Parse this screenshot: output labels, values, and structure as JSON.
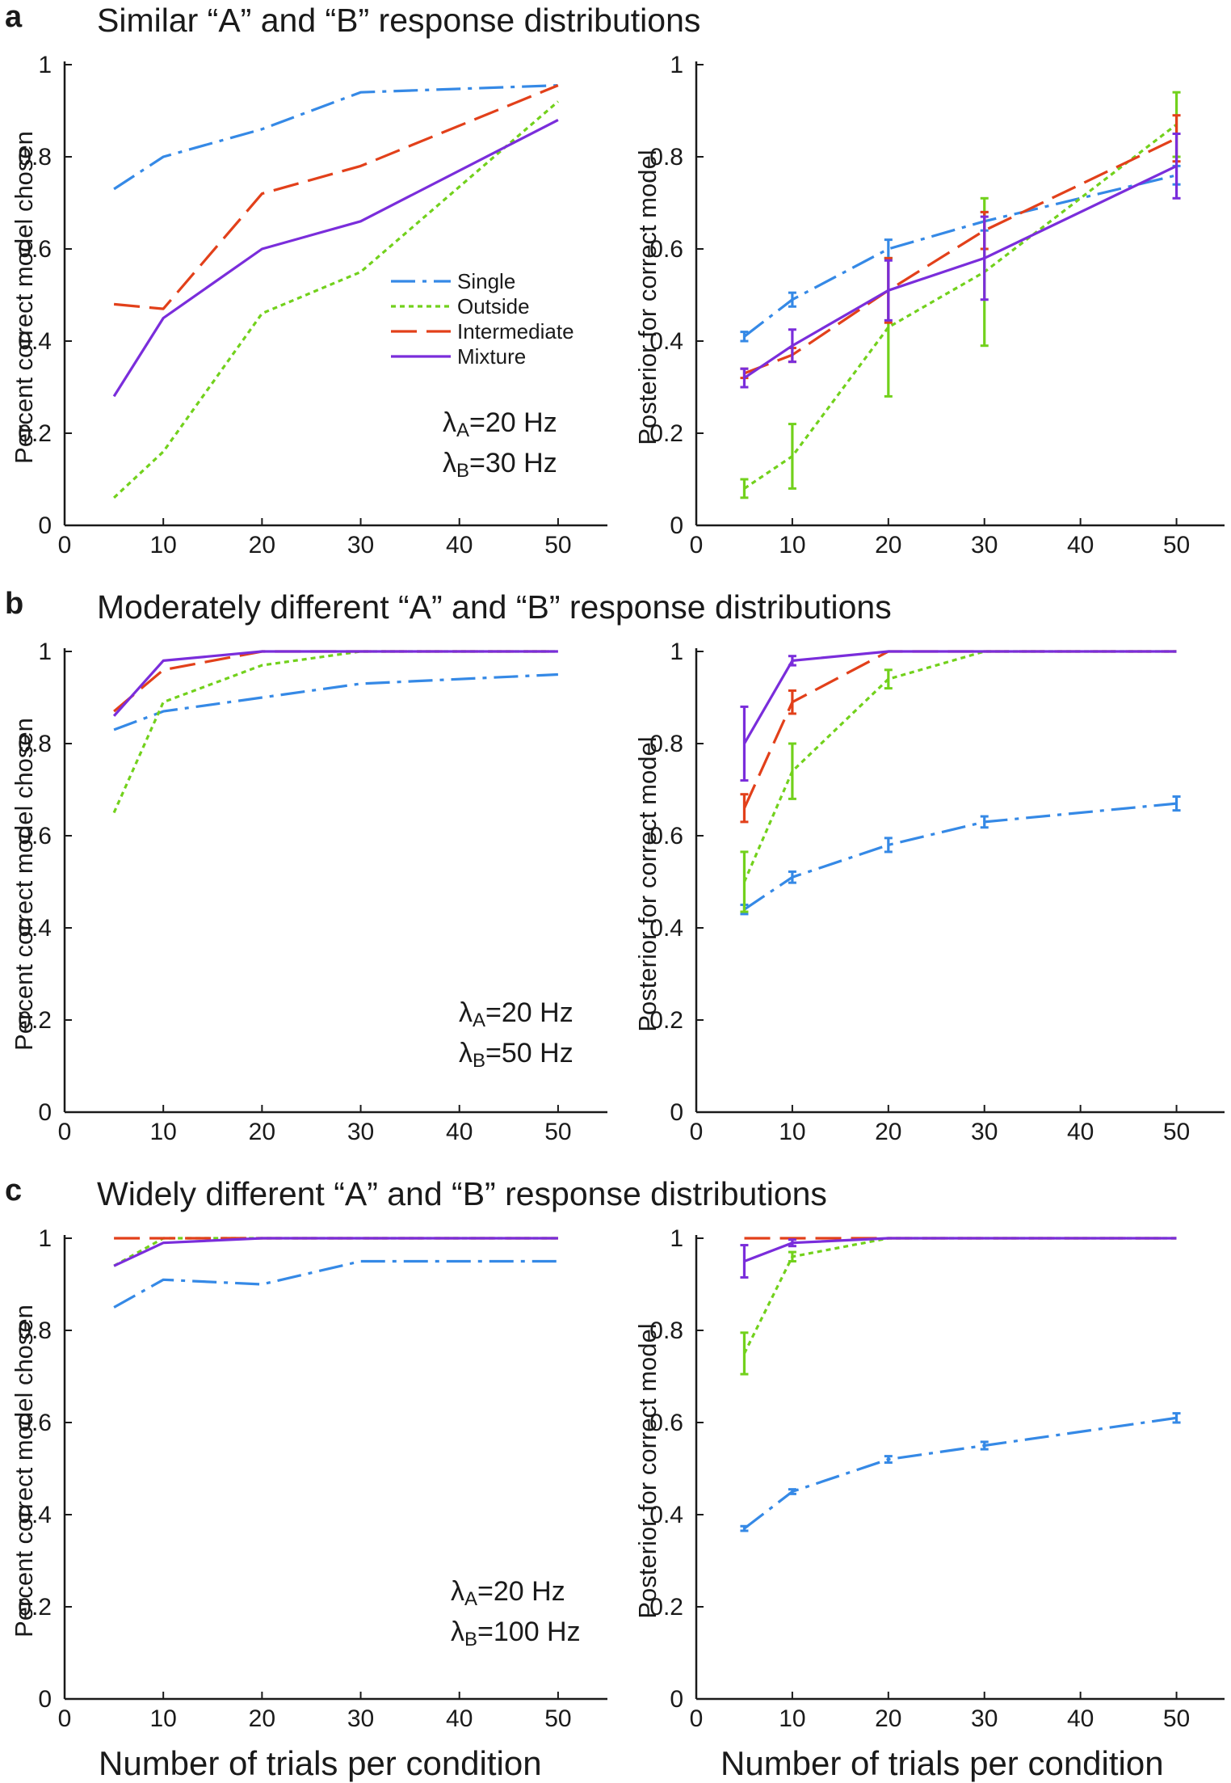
{
  "colors": {
    "Single": "#3589e6",
    "Outside": "#72d11c",
    "Intermediate": "#e2401a",
    "Mixture": "#7a2ddb"
  },
  "legend": [
    "Single",
    "Outside",
    "Intermediate",
    "Mixture"
  ],
  "chart_data": [
    {
      "id": "a-left",
      "panel": "a",
      "type": "line",
      "panel_letter": "a",
      "title": "Similar “A” and “B” response distributions",
      "ylabel": "Percent correct model chosen",
      "xlabel": "",
      "xlim": [
        0,
        55
      ],
      "ylim": [
        0,
        1
      ],
      "xticks": [
        0,
        10,
        20,
        30,
        40,
        50
      ],
      "yticks": [
        0,
        0.2,
        0.4,
        0.6,
        0.8,
        1
      ],
      "ytick_labels": [
        "0",
        "0.2",
        "0.4",
        "0.6",
        "0.8",
        "1"
      ],
      "x": [
        5,
        10,
        20,
        30,
        50
      ],
      "series": [
        {
          "name": "Single",
          "values": [
            0.73,
            0.8,
            0.86,
            0.94,
            0.955
          ]
        },
        {
          "name": "Outside",
          "values": [
            0.06,
            0.16,
            0.46,
            0.55,
            0.92
          ]
        },
        {
          "name": "Intermediate",
          "values": [
            0.48,
            0.47,
            0.72,
            0.78,
            0.955
          ]
        },
        {
          "name": "Mixture",
          "values": [
            0.28,
            0.45,
            0.6,
            0.66,
            0.88
          ]
        }
      ],
      "show_legend": true,
      "note": {
        "lambda_a": "=20 Hz",
        "lambda_b": "=30 Hz"
      }
    },
    {
      "id": "a-right",
      "panel": "a",
      "type": "line",
      "ylabel": "Posterior for correct model",
      "xlabel": "",
      "xlim": [
        0,
        55
      ],
      "ylim": [
        0,
        1
      ],
      "xticks": [
        0,
        10,
        20,
        30,
        40,
        50
      ],
      "yticks": [
        0,
        0.2,
        0.4,
        0.6,
        0.8,
        1
      ],
      "ytick_labels": [
        "0",
        "0.2",
        "0.4",
        "0.6",
        "0.8",
        "1"
      ],
      "x": [
        5,
        10,
        20,
        30,
        50
      ],
      "series": [
        {
          "name": "Single",
          "values": [
            0.41,
            0.49,
            0.6,
            0.66,
            0.76
          ],
          "errors": [
            0.01,
            0.015,
            0.02,
            0.02,
            0.02
          ]
        },
        {
          "name": "Outside",
          "values": [
            0.08,
            0.15,
            0.43,
            0.55,
            0.87
          ],
          "errors": [
            0.02,
            0.07,
            0.15,
            0.16,
            0.07
          ]
        },
        {
          "name": "Intermediate",
          "values": [
            0.33,
            0.37,
            0.51,
            0.64,
            0.84
          ],
          "errors": [
            0.01,
            0.015,
            0.07,
            0.04,
            0.05
          ]
        },
        {
          "name": "Mixture",
          "values": [
            0.32,
            0.39,
            0.51,
            0.58,
            0.78
          ],
          "errors": [
            0.02,
            0.035,
            0.065,
            0.09,
            0.07
          ]
        }
      ]
    },
    {
      "id": "b-left",
      "panel": "b",
      "type": "line",
      "panel_letter": "b",
      "title": "Moderately different “A” and “B” response distributions",
      "ylabel": "Percent correct model chosen",
      "xlabel": "",
      "xlim": [
        0,
        55
      ],
      "ylim": [
        0,
        1
      ],
      "xticks": [
        0,
        10,
        20,
        30,
        40,
        50
      ],
      "yticks": [
        0,
        0.2,
        0.4,
        0.6,
        0.8,
        1
      ],
      "ytick_labels": [
        "0",
        "0.2",
        "0.4",
        "0.6",
        "0.8",
        "1"
      ],
      "x": [
        5,
        10,
        20,
        30,
        50
      ],
      "series": [
        {
          "name": "Single",
          "values": [
            0.83,
            0.87,
            0.9,
            0.93,
            0.95
          ]
        },
        {
          "name": "Outside",
          "values": [
            0.65,
            0.89,
            0.97,
            1.0,
            1.0
          ]
        },
        {
          "name": "Intermediate",
          "values": [
            0.87,
            0.96,
            1.0,
            1.0,
            1.0
          ]
        },
        {
          "name": "Mixture",
          "values": [
            0.86,
            0.98,
            1.0,
            1.0,
            1.0
          ]
        }
      ],
      "note": {
        "lambda_a": "=20 Hz",
        "lambda_b": "=50 Hz"
      }
    },
    {
      "id": "b-right",
      "panel": "b",
      "type": "line",
      "ylabel": "Posterior for correct model",
      "xlabel": "",
      "xlim": [
        0,
        55
      ],
      "ylim": [
        0,
        1
      ],
      "xticks": [
        0,
        10,
        20,
        30,
        40,
        50
      ],
      "yticks": [
        0,
        0.2,
        0.4,
        0.6,
        0.8,
        1
      ],
      "ytick_labels": [
        "0",
        "0.2",
        "0.4",
        "0.6",
        "0.8",
        "1"
      ],
      "x": [
        5,
        10,
        20,
        30,
        50
      ],
      "series": [
        {
          "name": "Single",
          "values": [
            0.44,
            0.51,
            0.58,
            0.63,
            0.67
          ],
          "errors": [
            0.01,
            0.012,
            0.015,
            0.012,
            0.015
          ]
        },
        {
          "name": "Outside",
          "values": [
            0.5,
            0.74,
            0.94,
            1.0,
            1.0
          ],
          "errors": [
            0.065,
            0.06,
            0.02,
            0.0,
            0.0
          ]
        },
        {
          "name": "Intermediate",
          "values": [
            0.66,
            0.89,
            1.0,
            1.0,
            1.0
          ],
          "errors": [
            0.03,
            0.025,
            0.0,
            0.0,
            0.0
          ]
        },
        {
          "name": "Mixture",
          "values": [
            0.8,
            0.98,
            1.0,
            1.0,
            1.0
          ],
          "errors": [
            0.08,
            0.01,
            0.0,
            0.0,
            0.0
          ]
        }
      ]
    },
    {
      "id": "c-left",
      "panel": "c",
      "type": "line",
      "panel_letter": "c",
      "title": "Widely different “A” and “B” response distributions",
      "ylabel": "Percent correct model chosen",
      "xlabel": "Number of trials per condition",
      "xlim": [
        0,
        55
      ],
      "ylim": [
        0,
        1
      ],
      "xticks": [
        0,
        10,
        20,
        30,
        40,
        50
      ],
      "yticks": [
        0,
        0.2,
        0.4,
        0.6,
        0.8,
        1
      ],
      "ytick_labels": [
        "0",
        "0.2",
        "0.4",
        "0.6",
        "0.8",
        "1"
      ],
      "x": [
        5,
        10,
        20,
        30,
        50
      ],
      "series": [
        {
          "name": "Single",
          "values": [
            0.85,
            0.91,
            0.9,
            0.95,
            0.95
          ]
        },
        {
          "name": "Outside",
          "values": [
            0.94,
            1.0,
            1.0,
            1.0,
            1.0
          ]
        },
        {
          "name": "Intermediate",
          "values": [
            1.0,
            1.0,
            1.0,
            1.0,
            1.0
          ]
        },
        {
          "name": "Mixture",
          "values": [
            0.94,
            0.99,
            1.0,
            1.0,
            1.0
          ]
        }
      ],
      "note": {
        "lambda_a": "=20 Hz",
        "lambda_b": "=100 Hz"
      }
    },
    {
      "id": "c-right",
      "panel": "c",
      "type": "line",
      "ylabel": "Posterior for correct model",
      "xlabel": "Number of trials per condition",
      "xlim": [
        0,
        55
      ],
      "ylim": [
        0,
        1
      ],
      "xticks": [
        0,
        10,
        20,
        30,
        40,
        50
      ],
      "yticks": [
        0,
        0.2,
        0.4,
        0.6,
        0.8,
        1
      ],
      "ytick_labels": [
        "0",
        "0.2",
        "0.4",
        "0.6",
        "0.8",
        "1"
      ],
      "x": [
        5,
        10,
        20,
        30,
        50
      ],
      "series": [
        {
          "name": "Single",
          "values": [
            0.37,
            0.45,
            0.52,
            0.55,
            0.61
          ],
          "errors": [
            0.005,
            0.005,
            0.007,
            0.008,
            0.01
          ]
        },
        {
          "name": "Outside",
          "values": [
            0.75,
            0.96,
            1.0,
            1.0,
            1.0
          ],
          "errors": [
            0.045,
            0.01,
            0.0,
            0.0,
            0.0
          ]
        },
        {
          "name": "Intermediate",
          "values": [
            1.0,
            1.0,
            1.0,
            1.0,
            1.0
          ],
          "errors": [
            0.0,
            0.0,
            0.0,
            0.0,
            0.0
          ]
        },
        {
          "name": "Mixture",
          "values": [
            0.95,
            0.99,
            1.0,
            1.0,
            1.0
          ],
          "errors": [
            0.035,
            0.007,
            0.0,
            0.0,
            0.0
          ]
        }
      ]
    }
  ]
}
